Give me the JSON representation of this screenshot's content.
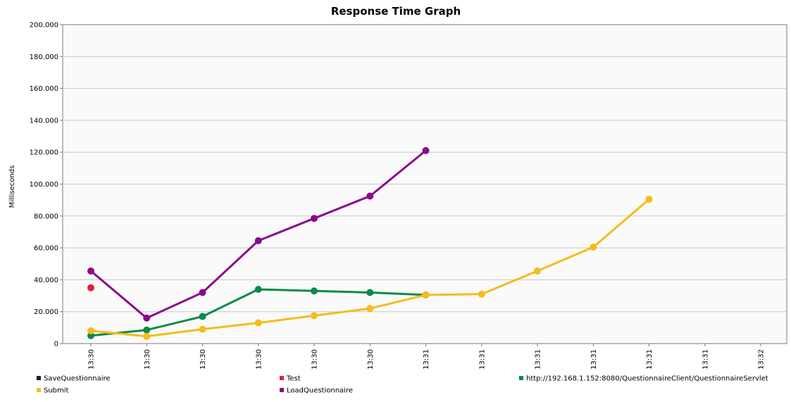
{
  "chart_data": {
    "type": "line",
    "title": "Response Time Graph",
    "ylabel": "Milliseconds",
    "xlabel": "",
    "ylim": [
      0,
      200000
    ],
    "yticks": [
      0,
      20000,
      40000,
      60000,
      80000,
      100000,
      120000,
      140000,
      160000,
      180000,
      200000
    ],
    "ytick_labels": [
      "0",
      "20.000",
      "40.000",
      "60.000",
      "80.000",
      "100.000",
      "120.000",
      "140.000",
      "160.000",
      "180.000",
      "200.000"
    ],
    "x_tick_labels": [
      "13:30",
      "13:30",
      "13:30",
      "13:30",
      "13:30",
      "13:30",
      "13:31",
      "13:31",
      "13:31",
      "13:31",
      "13:31",
      "13:31",
      "13:32"
    ],
    "grid": true,
    "legend_position": "bottom",
    "series": [
      {
        "name": "SaveQuestionnaire",
        "color": "#1a1a40",
        "points": []
      },
      {
        "name": "Test",
        "color": "#e0203a",
        "points": [
          [
            0,
            35000
          ]
        ]
      },
      {
        "name": "http://192.168.1.152:8080/QuestionnaireClient/QuestionnaireServlet",
        "color": "#0b8a4a",
        "points": [
          [
            0,
            5000
          ],
          [
            1,
            8500
          ],
          [
            2,
            17000
          ],
          [
            3,
            34000
          ],
          [
            4,
            33000
          ],
          [
            5,
            32000
          ],
          [
            6,
            30500
          ]
        ]
      },
      {
        "name": "Submit",
        "color": "#f5bc1c",
        "points": [
          [
            0,
            8000
          ],
          [
            1,
            4500
          ],
          [
            2,
            9000
          ],
          [
            3,
            13000
          ],
          [
            4,
            17500
          ],
          [
            5,
            22000
          ],
          [
            6,
            30500
          ],
          [
            7,
            31000
          ],
          [
            8,
            45500
          ],
          [
            9,
            60500
          ],
          [
            10,
            90500
          ]
        ]
      },
      {
        "name": "LoadQuestionnaire",
        "color": "#8b0a8c",
        "points": [
          [
            0,
            45500
          ],
          [
            1,
            16000
          ],
          [
            2,
            32000
          ],
          [
            3,
            64500
          ],
          [
            4,
            78500
          ],
          [
            5,
            92500
          ],
          [
            6,
            121000
          ]
        ]
      }
    ]
  }
}
